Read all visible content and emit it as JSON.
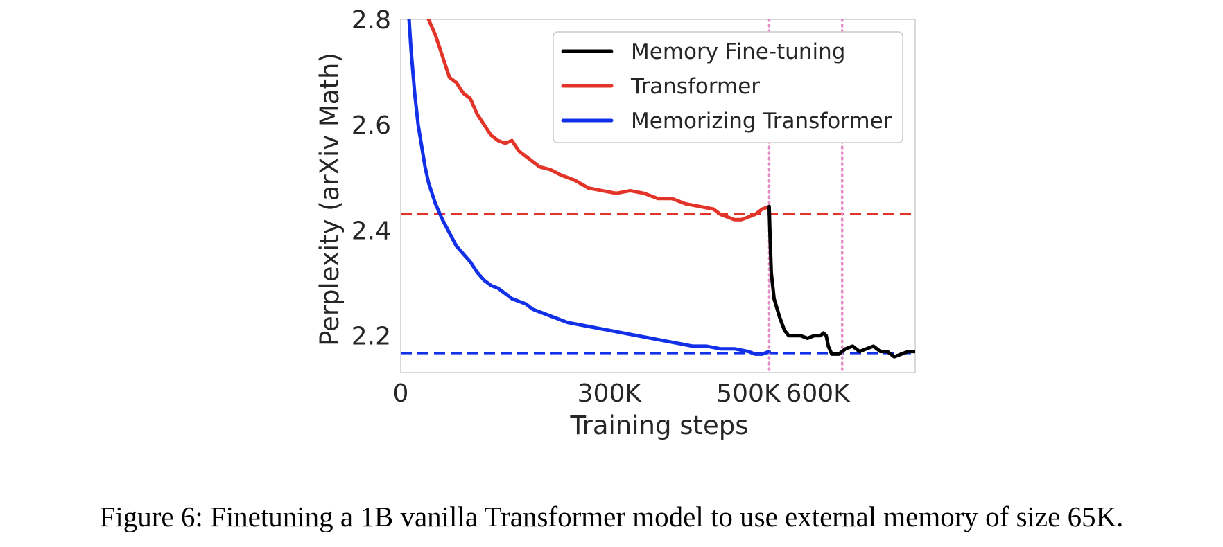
{
  "caption": "Figure 6: Finetuning a 1B vanilla Transformer model to use external memory of size 65K.",
  "colors": {
    "memory_finetuning": "#000000",
    "transformer": "#e3342a",
    "memorizing_transformer": "#1230e8",
    "vertical_markers": "#e58bc7",
    "frame": "#cccccc"
  },
  "chart_data": {
    "type": "line",
    "title": "",
    "xlabel": "Training steps",
    "ylabel": "Perplexity (arXiv Math)",
    "xlim": [
      0,
      740000
    ],
    "ylim": [
      2.13,
      2.8
    ],
    "xticks": [
      {
        "value": 0,
        "label": "0"
      },
      {
        "value": 300000,
        "label": "300K"
      },
      {
        "value": 500000,
        "label": "500K"
      },
      {
        "value": 600000,
        "label": "600K"
      }
    ],
    "yticks": [
      {
        "value": 2.2,
        "label": "2.2"
      },
      {
        "value": 2.4,
        "label": "2.4"
      },
      {
        "value": 2.6,
        "label": "2.6"
      },
      {
        "value": 2.8,
        "label": "2.8"
      }
    ],
    "grid": false,
    "legend_position": "top-right",
    "series": [
      {
        "name": "Memory Fine-tuning",
        "key": "memory_finetuning",
        "x": [
          530000,
          531000,
          533000,
          537000,
          545000,
          552000,
          558000,
          565000,
          575000,
          585000,
          595000,
          604000,
          608000,
          612000,
          615000,
          620000,
          630000,
          640000,
          650000,
          660000,
          670000,
          680000,
          690000,
          700000,
          710000,
          720000,
          730000,
          740000
        ],
        "y": [
          2.445,
          2.4,
          2.32,
          2.27,
          2.235,
          2.21,
          2.2,
          2.2,
          2.2,
          2.195,
          2.2,
          2.2,
          2.205,
          2.2,
          2.18,
          2.165,
          2.165,
          2.175,
          2.18,
          2.17,
          2.175,
          2.18,
          2.17,
          2.17,
          2.16,
          2.165,
          2.17,
          2.17
        ]
      },
      {
        "name": "Transformer",
        "key": "transformer",
        "x": [
          40000,
          50000,
          60000,
          70000,
          80000,
          90000,
          100000,
          110000,
          120000,
          130000,
          140000,
          150000,
          160000,
          170000,
          180000,
          190000,
          200000,
          215000,
          230000,
          250000,
          270000,
          290000,
          310000,
          330000,
          350000,
          370000,
          390000,
          410000,
          430000,
          450000,
          460000,
          470000,
          480000,
          490000,
          500000,
          510000,
          520000,
          530000
        ],
        "y": [
          2.8,
          2.77,
          2.73,
          2.69,
          2.68,
          2.66,
          2.65,
          2.62,
          2.6,
          2.58,
          2.57,
          2.565,
          2.57,
          2.55,
          2.54,
          2.53,
          2.52,
          2.515,
          2.505,
          2.495,
          2.48,
          2.475,
          2.47,
          2.475,
          2.47,
          2.46,
          2.46,
          2.45,
          2.445,
          2.44,
          2.43,
          2.425,
          2.42,
          2.42,
          2.425,
          2.43,
          2.44,
          2.445
        ]
      },
      {
        "name": "Memorizing Transformer",
        "key": "memorizing_transformer",
        "x": [
          12000,
          15000,
          20000,
          25000,
          30000,
          35000,
          40000,
          50000,
          60000,
          70000,
          80000,
          90000,
          100000,
          110000,
          120000,
          130000,
          140000,
          150000,
          160000,
          170000,
          180000,
          190000,
          200000,
          220000,
          240000,
          260000,
          280000,
          300000,
          320000,
          340000,
          360000,
          380000,
          400000,
          420000,
          440000,
          460000,
          480000,
          500000,
          510000,
          520000,
          530000
        ],
        "y": [
          2.8,
          2.74,
          2.66,
          2.6,
          2.56,
          2.52,
          2.49,
          2.45,
          2.42,
          2.395,
          2.37,
          2.355,
          2.34,
          2.32,
          2.305,
          2.295,
          2.29,
          2.28,
          2.27,
          2.265,
          2.26,
          2.25,
          2.245,
          2.235,
          2.225,
          2.22,
          2.215,
          2.21,
          2.205,
          2.2,
          2.195,
          2.19,
          2.185,
          2.18,
          2.18,
          2.175,
          2.175,
          2.17,
          2.165,
          2.165,
          2.17
        ]
      }
    ],
    "reference_lines": [
      {
        "orientation": "horizontal",
        "value": 2.431,
        "key": "transformer",
        "style": "dashed"
      },
      {
        "orientation": "horizontal",
        "value": 2.167,
        "key": "memorizing_transformer",
        "style": "dashed"
      },
      {
        "orientation": "vertical",
        "value": 530000,
        "key": "vertical_markers",
        "style": "dotted"
      },
      {
        "orientation": "vertical",
        "value": 635000,
        "key": "vertical_markers",
        "style": "dotted"
      }
    ]
  }
}
